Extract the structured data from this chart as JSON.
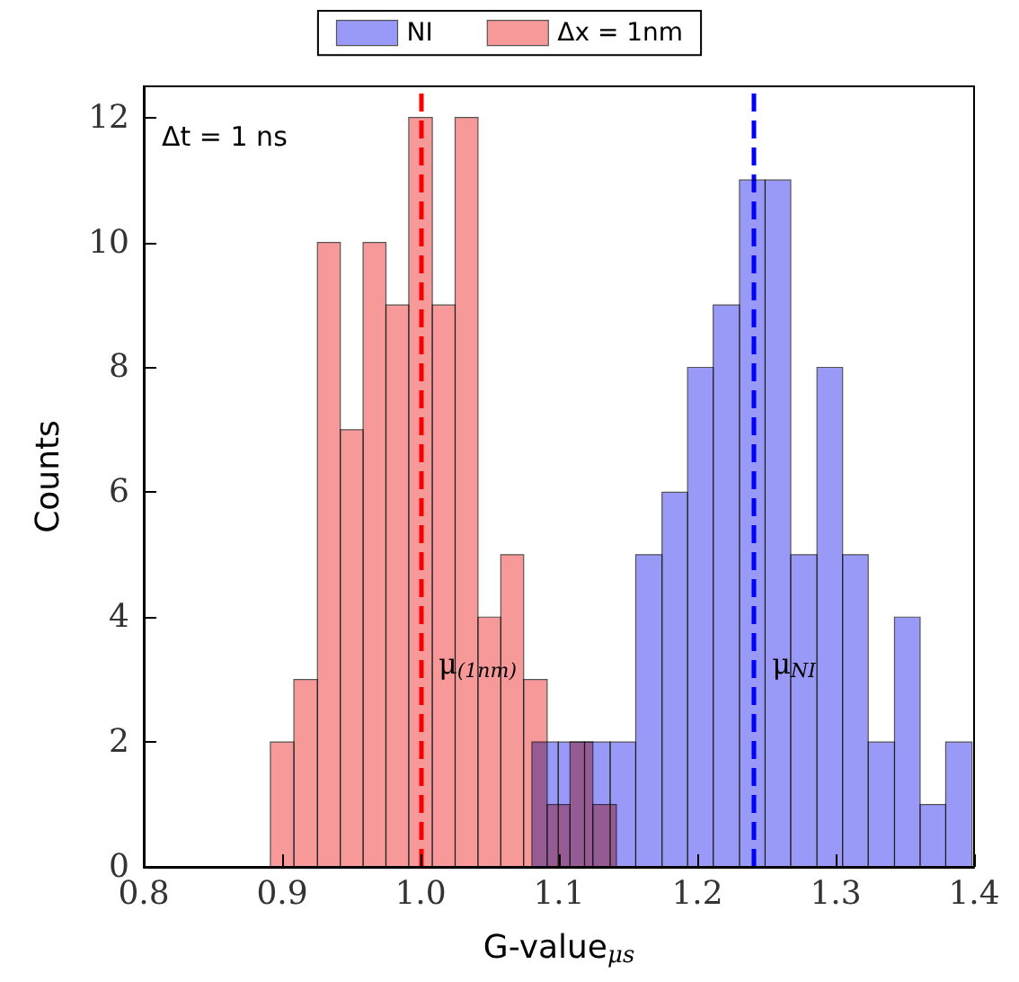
{
  "chart_data": {
    "type": "bar",
    "xlabel": "G-value$_{μs}$",
    "ylabel": "Counts",
    "series": [
      {
        "name": "NI",
        "color": "#9999f7",
        "x": [
          1.09,
          1.109,
          1.128,
          1.146,
          1.165,
          1.184,
          1.202,
          1.221,
          1.24,
          1.258,
          1.277,
          1.296,
          1.314,
          1.333,
          1.352,
          1.37,
          1.389
        ],
        "values": [
          2,
          2,
          2,
          2,
          5,
          6,
          8,
          9,
          11,
          11,
          5,
          8,
          5,
          2,
          4,
          1,
          2
        ]
      },
      {
        "name": "Δx = 1nm",
        "color": "#f89999",
        "x": [
          0.9,
          0.917,
          0.934,
          0.95,
          0.967,
          0.983,
          1.0,
          1.017,
          1.033,
          1.05,
          1.066,
          1.083,
          1.1,
          1.116,
          1.133
        ],
        "values": [
          2,
          3,
          10,
          7,
          10,
          9,
          12,
          9,
          12,
          4,
          5,
          3,
          1,
          2,
          1
        ]
      }
    ],
    "xlim": [
      0.8,
      1.4
    ],
    "xticks": [
      {
        "value": 0.8,
        "label": "0.8"
      },
      {
        "value": 0.9,
        "label": "0.9"
      },
      {
        "value": 1.0,
        "label": "1.0"
      },
      {
        "value": 1.1,
        "label": "1.1"
      },
      {
        "value": 1.2,
        "label": "1.2"
      },
      {
        "value": 1.3,
        "label": "1.3"
      },
      {
        "value": 1.4,
        "label": "1.4"
      }
    ],
    "ylim": [
      0,
      12.5
    ],
    "yticks": [
      0,
      2,
      4,
      6,
      8,
      10,
      12
    ],
    "ref_lines": [
      {
        "axis": "x",
        "value": 1.0,
        "label": "μ$_{(1nm)}$",
        "color": "#ff0000",
        "line_style": "dashed"
      },
      {
        "axis": "x",
        "value": 1.241,
        "label": "μ$_{NI}$",
        "color": "#0000ff",
        "line_style": "dashed"
      }
    ],
    "annotations": [
      "Δt = 1 ns"
    ],
    "legend": "top",
    "grid": false
  }
}
